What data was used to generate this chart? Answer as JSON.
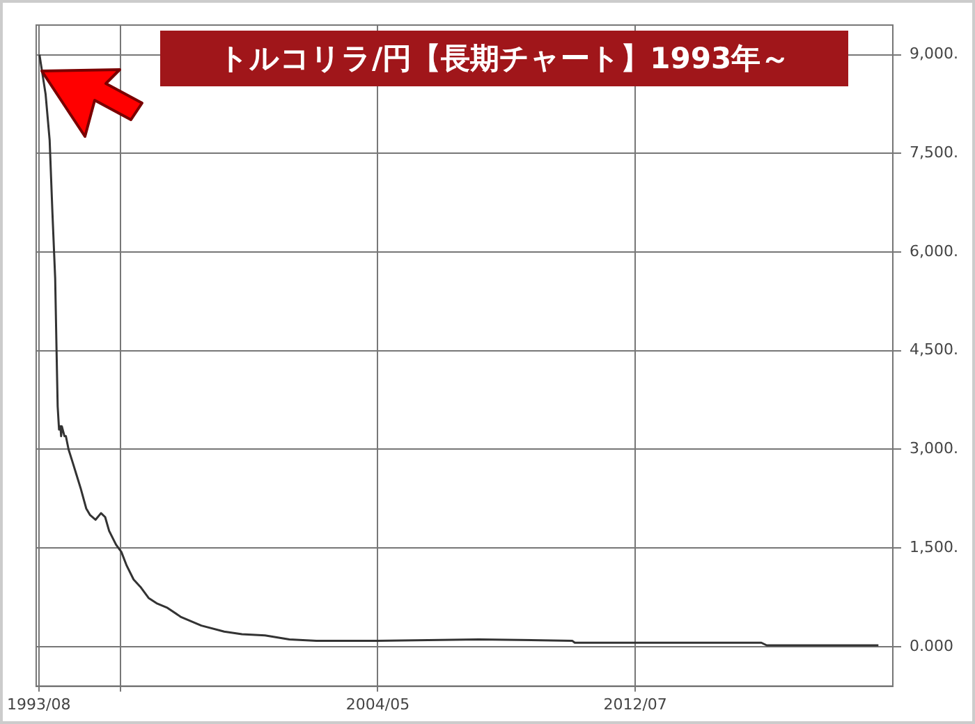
{
  "chart_data": {
    "type": "line",
    "title": "トルコリラ/円【長期チャート】1993年～",
    "x": [
      "1993-08-08",
      "1993-10-18",
      "1993-12-04",
      "1994-01-05",
      "1994-02-06",
      "1994-02-22",
      "1994-03-07",
      "1994-03-23",
      "1994-04-08",
      "1994-04-16",
      "1994-04-24",
      "1994-05-25",
      "1994-06-10",
      "1994-07-11",
      "1994-08-28",
      "1994-10-14",
      "1994-11-30",
      "1995-02-01",
      "1995-03-18",
      "1995-05-20",
      "1995-07-22",
      "1995-09-08",
      "1995-10-24",
      "1996-01-12",
      "1996-03-14",
      "1996-05-15",
      "1996-08-03",
      "1996-10-20",
      "1997-01-23",
      "1997-04-26",
      "1997-08-30",
      "1998-02-04",
      "1998-09-26",
      "1999-06-18",
      "2000-01-09",
      "2000-10-03",
      "2001-07-12",
      "2002-05-21",
      "2004-05-01",
      "2007-07-15",
      "2010-07-01",
      "2010-08-01",
      "2016-07-01",
      "2016-09-01",
      "2020-03-18"
    ],
    "series": [
      {
        "color": "#333333",
        "values": [
          9000,
          8400,
          7700,
          6600,
          5600,
          4500,
          3650,
          3300,
          3350,
          3200,
          3350,
          3200,
          3200,
          3000,
          2800,
          2600,
          2400,
          2100,
          2000,
          1930,
          2030,
          1970,
          1760,
          1550,
          1440,
          1230,
          1020,
          910,
          740,
          660,
          590,
          450,
          320,
          230,
          190,
          170,
          110,
          90,
          90,
          110,
          90,
          60,
          60,
          20,
          20
        ]
      }
    ],
    "xlim": [
      "1993-07",
      "2020-09"
    ],
    "xticks": [
      {
        "value": "1993-08",
        "label": "1993/08"
      },
      {
        "value": "1996-03",
        "label": null
      },
      {
        "value": "2004-05",
        "label": "2004/05"
      },
      {
        "value": "2012-07",
        "label": "2012/07"
      }
    ],
    "ylim": [
      -600,
      9450
    ],
    "yticks": [
      {
        "value": 0,
        "label": "0.000"
      },
      {
        "value": 1500,
        "label": "1,500."
      },
      {
        "value": 3000,
        "label": "3,000."
      },
      {
        "value": 4500,
        "label": "4,500."
      },
      {
        "value": 6000,
        "label": "6,000."
      },
      {
        "value": 7500,
        "label": "7,500."
      },
      {
        "value": 9000,
        "label": "9,000."
      }
    ],
    "grid": true,
    "legend": false,
    "marker": "none",
    "line_style": "solid"
  }
}
